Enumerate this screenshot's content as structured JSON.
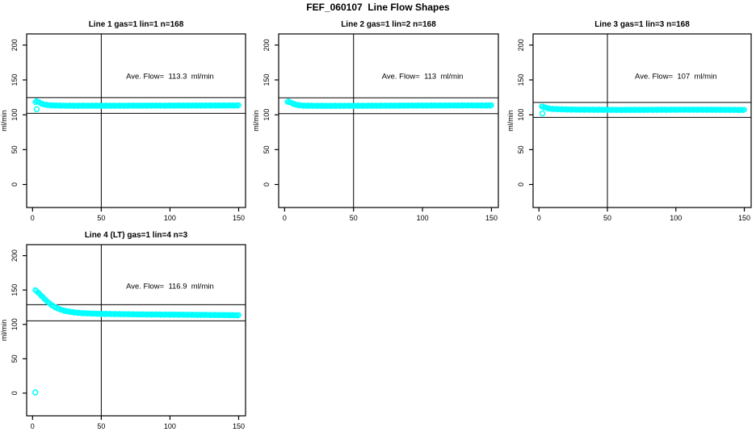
{
  "page_title": "FEF_060107  Line Flow Shapes",
  "marker_color": "#00FFFF",
  "axis_color": "#000000",
  "chart_data": [
    {
      "type": "scatter",
      "title": "Line 1 gas=1 lin=1 n=168",
      "annotation": "Ave. Flow=  113.3  ml/min",
      "ave_flow_ml_min": 113.3,
      "n_tests": 168,
      "ylabel": "ml/min",
      "xlim": [
        -4.3,
        155
      ],
      "ylim": [
        -33,
        216
      ],
      "x_ticks": [
        0,
        50,
        100,
        150
      ],
      "y_ticks": [
        0,
        50,
        100,
        150,
        200
      ],
      "vline_x": 50,
      "limit_lines": {
        "upper": 124.6,
        "lower": 102.0
      },
      "annotation_xy": [
        100,
        152
      ],
      "curve": {
        "n_points": 168,
        "x_start": 2,
        "x_end": 150,
        "jitter": 0.6,
        "keypoints": [
          [
            2,
            118
          ],
          [
            3,
            119.5
          ],
          [
            4,
            119
          ],
          [
            5,
            117.5
          ],
          [
            7,
            115.5
          ],
          [
            9,
            114.5
          ],
          [
            12,
            113.8
          ],
          [
            16,
            113.3
          ],
          [
            25,
            113
          ],
          [
            60,
            113
          ],
          [
            110,
            113.2
          ],
          [
            150,
            113.4
          ]
        ]
      },
      "outliers": [
        [
          3,
          108
        ]
      ]
    },
    {
      "type": "scatter",
      "title": "Line 2 gas=1 lin=2 n=168",
      "annotation": "Ave. Flow=  113  ml/min",
      "ave_flow_ml_min": 113,
      "n_tests": 168,
      "ylabel": "ml/min",
      "xlim": [
        -4.3,
        155
      ],
      "ylim": [
        -33,
        216
      ],
      "x_ticks": [
        0,
        50,
        100,
        150
      ],
      "y_ticks": [
        0,
        50,
        100,
        150,
        200
      ],
      "vline_x": 50,
      "limit_lines": {
        "upper": 124.3,
        "lower": 101.7
      },
      "annotation_xy": [
        100,
        152
      ],
      "curve": {
        "n_points": 168,
        "x_start": 2,
        "x_end": 150,
        "jitter": 0.6,
        "keypoints": [
          [
            2,
            118.5
          ],
          [
            3,
            119
          ],
          [
            4,
            118
          ],
          [
            6,
            116
          ],
          [
            8,
            114.5
          ],
          [
            11,
            113.5
          ],
          [
            15,
            113
          ],
          [
            30,
            112.8
          ],
          [
            70,
            113
          ],
          [
            110,
            113.3
          ],
          [
            150,
            113.4
          ]
        ]
      },
      "outliers": []
    },
    {
      "type": "scatter",
      "title": "Line 3 gas=1 lin=3 n=168",
      "annotation": "Ave. Flow=  107  ml/min",
      "ave_flow_ml_min": 107,
      "n_tests": 168,
      "ylabel": "ml/min",
      "xlim": [
        -4.3,
        155
      ],
      "ylim": [
        -33,
        216
      ],
      "x_ticks": [
        0,
        50,
        100,
        150
      ],
      "y_ticks": [
        0,
        50,
        100,
        150,
        200
      ],
      "vline_x": 50,
      "limit_lines": {
        "upper": 117.7,
        "lower": 96.3
      },
      "annotation_xy": [
        100,
        152
      ],
      "curve": {
        "n_points": 168,
        "x_start": 2,
        "x_end": 150,
        "jitter": 0.6,
        "keypoints": [
          [
            2,
            112
          ],
          [
            4,
            111
          ],
          [
            6,
            109.5
          ],
          [
            9,
            108.5
          ],
          [
            14,
            108
          ],
          [
            25,
            107.4
          ],
          [
            60,
            107
          ],
          [
            110,
            107.3
          ],
          [
            150,
            107
          ]
        ]
      },
      "outliers": [
        [
          2.5,
          102
        ]
      ]
    },
    {
      "type": "scatter",
      "title": "Line 4 (LT) gas=1 lin=4 n=3",
      "annotation": "Ave. Flow=  116.9  ml/min",
      "ave_flow_ml_min": 116.9,
      "n_tests": 3,
      "ylabel": "ml/min",
      "xlim": [
        -4.3,
        155
      ],
      "ylim": [
        -33,
        216
      ],
      "x_ticks": [
        0,
        50,
        100,
        150
      ],
      "y_ticks": [
        0,
        50,
        100,
        150,
        200
      ],
      "vline_x": 50,
      "limit_lines": {
        "upper": 128.6,
        "lower": 105.2
      },
      "annotation_xy": [
        100,
        152
      ],
      "curve": {
        "n_points": 168,
        "x_start": 2,
        "x_end": 150,
        "jitter": 0.6,
        "keypoints": [
          [
            2,
            150
          ],
          [
            4,
            146.5
          ],
          [
            6,
            142.5
          ],
          [
            8,
            138.5
          ],
          [
            10,
            134.5
          ],
          [
            12,
            131
          ],
          [
            14,
            128
          ],
          [
            16,
            125.5
          ],
          [
            18,
            123.5
          ],
          [
            20,
            121.8
          ],
          [
            23,
            120
          ],
          [
            26,
            118.7
          ],
          [
            30,
            117.5
          ],
          [
            35,
            116.5
          ],
          [
            40,
            116
          ],
          [
            50,
            115.3
          ],
          [
            60,
            115
          ],
          [
            80,
            114.5
          ],
          [
            100,
            114.2
          ],
          [
            125,
            113.8
          ],
          [
            150,
            113.3
          ]
        ]
      },
      "outliers": [
        [
          2,
          1
        ]
      ]
    }
  ]
}
